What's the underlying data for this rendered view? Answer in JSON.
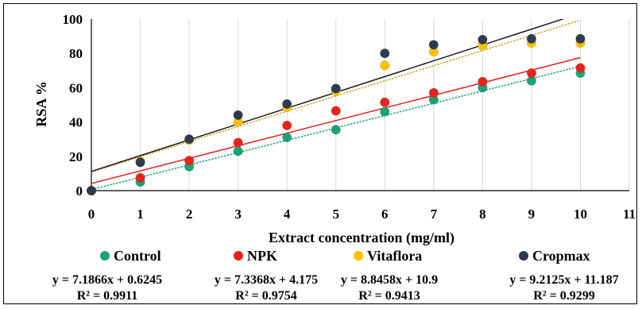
{
  "chart_data": {
    "type": "scatter",
    "title": "",
    "xlabel": "Extract concentration (mg/ml)",
    "ylabel": "RSA %",
    "xlim": [
      0,
      11
    ],
    "ylim": [
      0,
      100
    ],
    "xticks": [
      "0",
      "1",
      "2",
      "3",
      "4",
      "5",
      "6",
      "7",
      "8",
      "9",
      "10",
      "11"
    ],
    "yticks": [
      "0",
      "20",
      "40",
      "60",
      "80",
      "100"
    ],
    "grid": "vertical",
    "legend_position": "bottom",
    "x": [
      0,
      1,
      2,
      3,
      4,
      5,
      6,
      7,
      8,
      9,
      10
    ],
    "series": [
      {
        "name": "Control",
        "color": "#1aa37a",
        "values": [
          0,
          5,
          14,
          23,
          31,
          35.5,
          46,
          53,
          60,
          64,
          68.5
        ],
        "trend": {
          "slope": 7.1866,
          "intercept": 0.6245,
          "color": "#1aa37a"
        },
        "equation": "y = 7.1866x + 0.6245",
        "r2": "R² = 0.9911"
      },
      {
        "name": "NPK",
        "color": "#e8231b",
        "values": [
          0,
          7.5,
          17.5,
          28,
          38,
          46.5,
          51.5,
          57,
          63.5,
          68.5,
          71.5
        ],
        "trend": {
          "slope": 7.3368,
          "intercept": 4.175,
          "color": "#e8231b"
        },
        "equation": "y = 7.3368x + 4.175",
        "r2": "R² = 0.9754"
      },
      {
        "name": "Vitaflora",
        "color": "#ffc000",
        "values": [
          0,
          17,
          29.5,
          40,
          48.5,
          58,
          73,
          81,
          84.5,
          86,
          86
        ],
        "trend": {
          "slope": 8.8458,
          "intercept": 10.9,
          "color": "#c9a532"
        },
        "equation": "y = 8.8458x + 10.9",
        "r2": "R² = 0.9413"
      },
      {
        "name": "Cropmax",
        "color": "#2e3b4e",
        "values": [
          0,
          16.5,
          30,
          44,
          50.5,
          59.5,
          80,
          85,
          88,
          88.5,
          88.5
        ],
        "trend": {
          "slope": 9.2125,
          "intercept": 11.187,
          "color": "#1a1a1a"
        },
        "equation": "y = 9.2125x + 11.187",
        "r2": "R² = 0.9299"
      }
    ]
  }
}
